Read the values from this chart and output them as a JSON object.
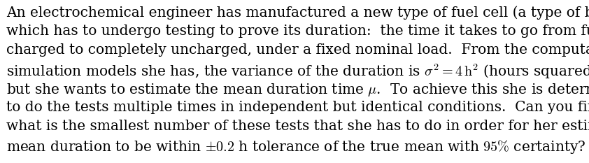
{
  "lines": [
    "An electrochemical engineer has manufactured a new type of fuel cell (a type of battery)",
    "which has to undergo testing to prove its duration:  the time it takes to go from fully",
    "charged to completely uncharged, under a fixed nominal load.  From the computational",
    "simulation models she has, the variance of the duration is $\\sigma^2 = 4\\,\\mathrm{h}^2$ (hours squared)",
    "but she wants to estimate the mean duration time $\\mu$.  To achieve this she is determined",
    "to do the tests multiple times in independent but identical conditions.  Can you find",
    "what is the smallest number of these tests that she has to do in order for her estimated",
    "mean duration to be within $\\pm 0.2$ h tolerance of the true mean with $95\\%$ certainty?"
  ],
  "background_color": "#ffffff",
  "text_color": "#000000",
  "fontsize": 14.5,
  "font_family": "serif",
  "fig_width": 8.42,
  "fig_height": 2.33,
  "dpi": 100
}
